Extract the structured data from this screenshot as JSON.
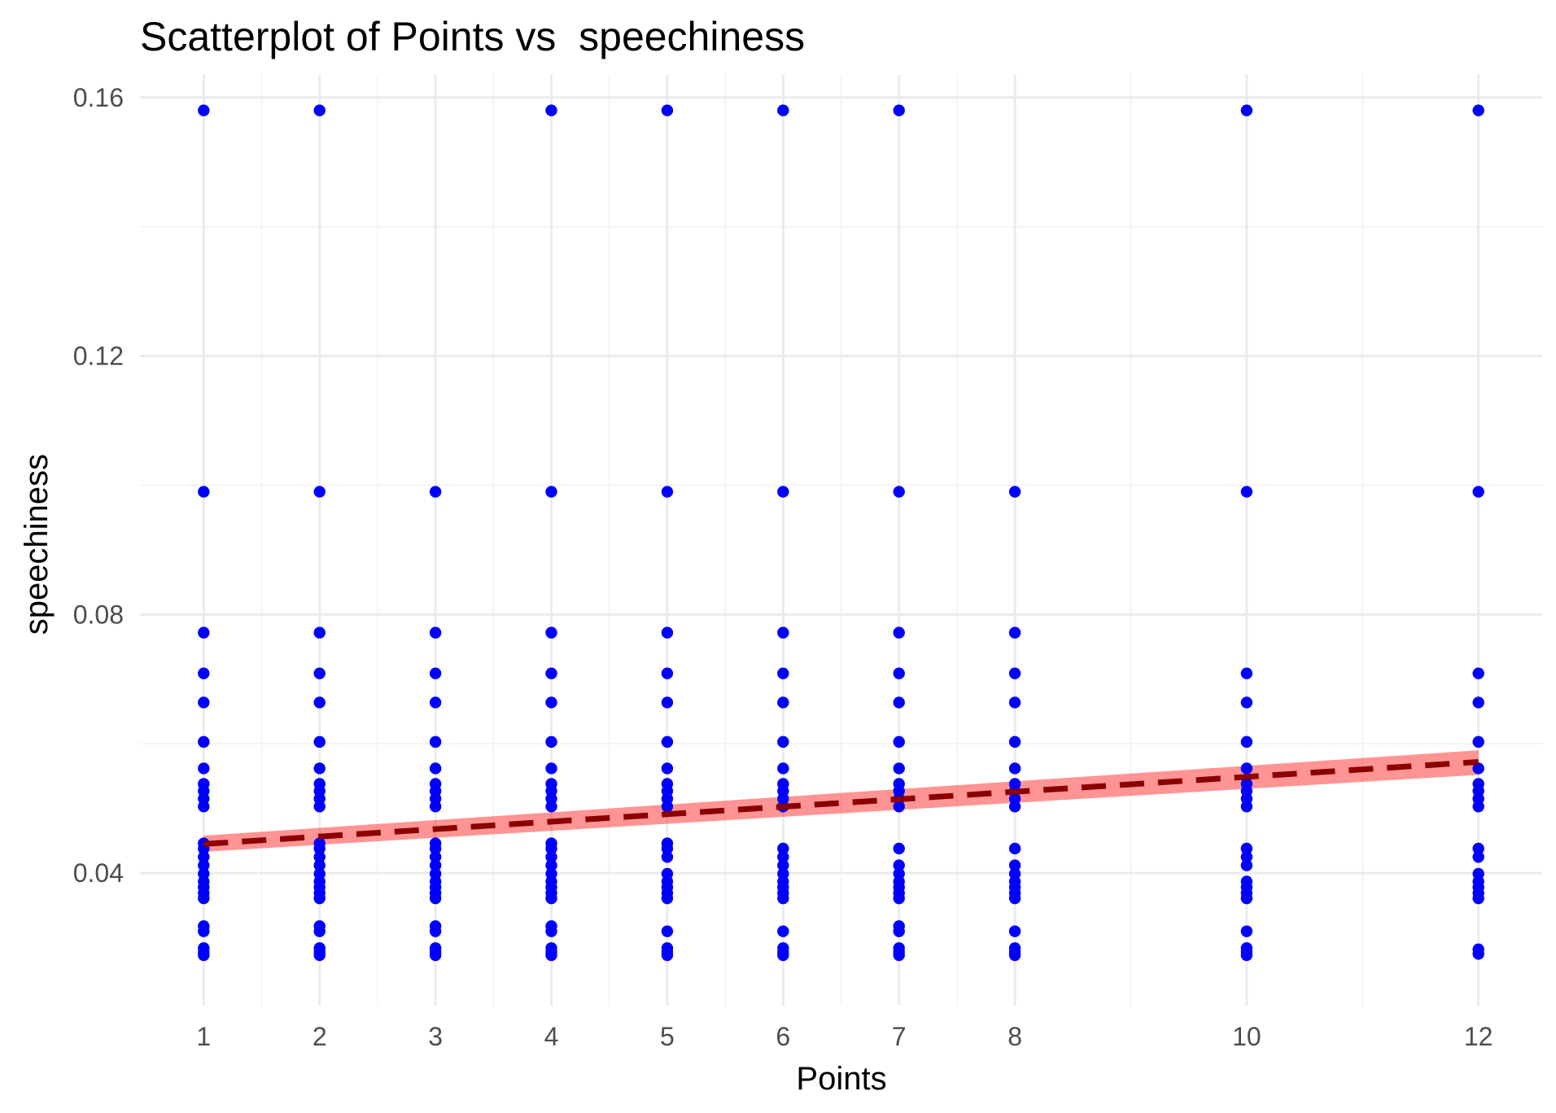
{
  "chart_data": {
    "type": "scatter",
    "title": "Scatterplot of Points vs  speechiness",
    "xlabel": "Points",
    "ylabel": "speechiness",
    "xlim": [
      0.45,
      12.55
    ],
    "ylim": [
      0.0195,
      0.1635
    ],
    "x_ticks": [
      1,
      2,
      3,
      4,
      5,
      6,
      7,
      8,
      10,
      12
    ],
    "x_tick_labels": [
      "1",
      "2",
      "3",
      "4",
      "5",
      "6",
      "7",
      "8",
      "10",
      "12"
    ],
    "y_ticks": [
      0.04,
      0.08,
      0.12,
      0.16
    ],
    "y_tick_labels": [
      "0.04",
      "0.08",
      "0.12",
      "0.16"
    ],
    "y_minor_ticks": [
      0.06,
      0.1,
      0.14
    ],
    "grid": true,
    "legend": "none",
    "point_color": "#0000ff",
    "points_by_x": [
      {
        "x": 1,
        "y": [
          0.158,
          0.099,
          0.0772,
          0.0709,
          0.0664,
          0.0603,
          0.0562,
          0.0538,
          0.0527,
          0.0515,
          0.0503,
          0.0446,
          0.0438,
          0.0425,
          0.0412,
          0.0399,
          0.0387,
          0.0378,
          0.0369,
          0.0361,
          0.0318,
          0.031,
          0.0284,
          0.0278,
          0.0273
        ]
      },
      {
        "x": 2,
        "y": [
          0.158,
          0.099,
          0.0772,
          0.0709,
          0.0664,
          0.0603,
          0.0562,
          0.0538,
          0.0527,
          0.0515,
          0.0503,
          0.0446,
          0.0438,
          0.0425,
          0.0412,
          0.0399,
          0.0387,
          0.0378,
          0.0369,
          0.0361,
          0.0318,
          0.031,
          0.0284,
          0.0278,
          0.0273
        ]
      },
      {
        "x": 3,
        "y": [
          0.099,
          0.0772,
          0.0709,
          0.0664,
          0.0603,
          0.0562,
          0.0538,
          0.0527,
          0.0515,
          0.0503,
          0.0446,
          0.0438,
          0.0425,
          0.0412,
          0.0399,
          0.0387,
          0.0378,
          0.0369,
          0.0361,
          0.0318,
          0.031,
          0.0284,
          0.0278,
          0.0273
        ]
      },
      {
        "x": 4,
        "y": [
          0.158,
          0.099,
          0.0772,
          0.0709,
          0.0664,
          0.0603,
          0.0562,
          0.0538,
          0.0527,
          0.0515,
          0.0503,
          0.0446,
          0.0438,
          0.0425,
          0.0412,
          0.0399,
          0.0387,
          0.0378,
          0.0369,
          0.0361,
          0.0318,
          0.031,
          0.0284,
          0.0278,
          0.0273
        ]
      },
      {
        "x": 5,
        "y": [
          0.158,
          0.099,
          0.0772,
          0.0709,
          0.0664,
          0.0603,
          0.0562,
          0.0538,
          0.0527,
          0.0515,
          0.0503,
          0.0446,
          0.0438,
          0.0425,
          0.0399,
          0.0387,
          0.0378,
          0.0369,
          0.0361,
          0.031,
          0.0284,
          0.0278,
          0.0273
        ]
      },
      {
        "x": 6,
        "y": [
          0.158,
          0.099,
          0.0772,
          0.0709,
          0.0664,
          0.0603,
          0.0562,
          0.0538,
          0.0527,
          0.0515,
          0.0503,
          0.0438,
          0.0425,
          0.0412,
          0.0399,
          0.0387,
          0.0378,
          0.0369,
          0.0361,
          0.031,
          0.0284,
          0.0278,
          0.0273
        ]
      },
      {
        "x": 7,
        "y": [
          0.158,
          0.099,
          0.0772,
          0.0709,
          0.0664,
          0.0603,
          0.0562,
          0.0538,
          0.0527,
          0.0515,
          0.0503,
          0.0438,
          0.0412,
          0.0399,
          0.0387,
          0.0378,
          0.0369,
          0.0361,
          0.0318,
          0.031,
          0.0284,
          0.0278,
          0.0273
        ]
      },
      {
        "x": 8,
        "y": [
          0.099,
          0.0772,
          0.0709,
          0.0664,
          0.0603,
          0.0562,
          0.0538,
          0.0527,
          0.0515,
          0.0503,
          0.0438,
          0.0412,
          0.0399,
          0.0387,
          0.0378,
          0.0369,
          0.0361,
          0.031,
          0.0284,
          0.0278,
          0.0273
        ]
      },
      {
        "x": 10,
        "y": [
          0.158,
          0.099,
          0.0709,
          0.0664,
          0.0603,
          0.0562,
          0.0538,
          0.0527,
          0.0515,
          0.0503,
          0.0438,
          0.0425,
          0.0412,
          0.0387,
          0.0378,
          0.0369,
          0.0361,
          0.031,
          0.0284,
          0.0278,
          0.0273
        ]
      },
      {
        "x": 12,
        "y": [
          0.158,
          0.099,
          0.0709,
          0.0664,
          0.0603,
          0.0562,
          0.0538,
          0.0527,
          0.0515,
          0.0503,
          0.0438,
          0.0425,
          0.0399,
          0.0387,
          0.0378,
          0.0369,
          0.0361,
          0.0282,
          0.0275
        ]
      }
    ],
    "trend_line": {
      "method": "linear",
      "color": "#8b0000",
      "line_style": "dashed",
      "x_range": [
        1,
        12
      ],
      "fitted": [
        0.0445,
        0.0572
      ],
      "ribbon_color": "#ff0000",
      "ribbon_lower": [
        0.0433,
        0.0552
      ],
      "ribbon_upper": [
        0.0458,
        0.059
      ]
    }
  }
}
